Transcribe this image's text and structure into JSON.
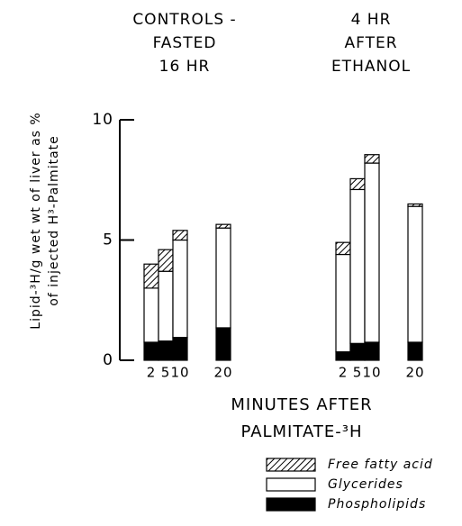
{
  "chart_data": {
    "type": "stacked_bar",
    "groups": [
      {
        "label": [
          "CONTROLS -",
          "FASTED",
          "16 HR"
        ],
        "categories": [
          "2",
          "5",
          "10",
          "20"
        ]
      },
      {
        "label": [
          "4 HR",
          "AFTER",
          "ETHANOL"
        ],
        "categories": [
          "2",
          "5",
          "10",
          "20"
        ]
      }
    ],
    "series": [
      {
        "name": "Phospholipids",
        "color": "#000000",
        "values": [
          [
            0.75,
            0.8,
            0.95,
            1.35
          ],
          [
            0.35,
            0.7,
            0.75,
            0.75
          ]
        ]
      },
      {
        "name": "Glycerides",
        "color": "#ffffff",
        "values": [
          [
            2.25,
            2.9,
            4.05,
            4.15
          ],
          [
            4.05,
            6.4,
            7.45,
            5.65
          ]
        ]
      },
      {
        "name": "Free fatty acid",
        "color": "#000000",
        "hatch": true,
        "values": [
          [
            1.0,
            0.9,
            0.4,
            0.15
          ],
          [
            0.5,
            0.45,
            0.35,
            0.1
          ]
        ]
      }
    ],
    "ylabel": [
      "Lipid-³H/g wet wt of liver as %",
      "of injected H³-Palmitate"
    ],
    "xlabel": [
      "MINUTES AFTER",
      "PALMITATE-³H"
    ],
    "ylim": [
      0,
      10
    ],
    "yticks": [
      0,
      5,
      10
    ]
  }
}
